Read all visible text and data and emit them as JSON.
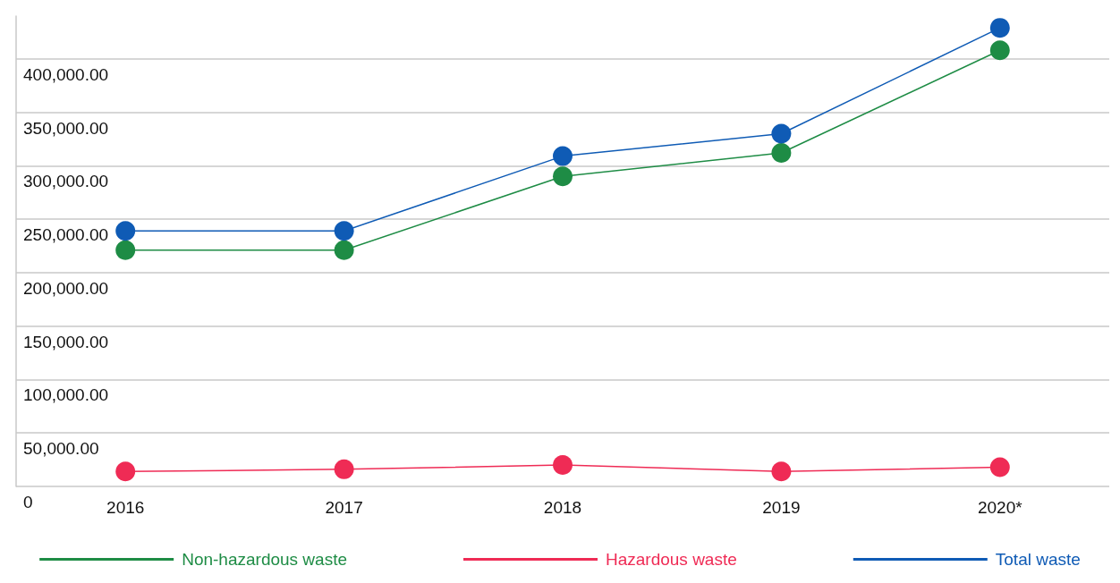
{
  "chart_data": {
    "type": "line",
    "categories": [
      "2016",
      "2017",
      "2018",
      "2019",
      "2020*"
    ],
    "series": [
      {
        "name": "Non-hazardous waste",
        "color": "#1e8c45",
        "values": [
          221000,
          221000,
          290000,
          312000,
          408000
        ]
      },
      {
        "name": "Hazardous waste",
        "color": "#ef2b55",
        "values": [
          14000,
          16000,
          20000,
          14000,
          18000
        ]
      },
      {
        "name": "Total waste",
        "color": "#0f5bb5",
        "values": [
          239000,
          239000,
          309000,
          330000,
          429000
        ]
      }
    ],
    "ylim": [
      0,
      440000
    ],
    "yticks": [
      0,
      {
        "value": 50000,
        "label": "50,000.00"
      },
      {
        "value": 100000,
        "label": "100,000.00"
      },
      {
        "value": 150000,
        "label": "150,000.00"
      },
      {
        "value": 200000,
        "label": "200,000.00"
      },
      {
        "value": 250000,
        "label": "250,000.00"
      },
      {
        "value": 300000,
        "label": "300,000.00"
      },
      {
        "value": 350000,
        "label": "350,000.00"
      },
      {
        "value": 400000,
        "label": "400,000.00"
      }
    ],
    "grid": "y",
    "legend": "bottom",
    "marker": "circle",
    "line_style": "solid"
  }
}
